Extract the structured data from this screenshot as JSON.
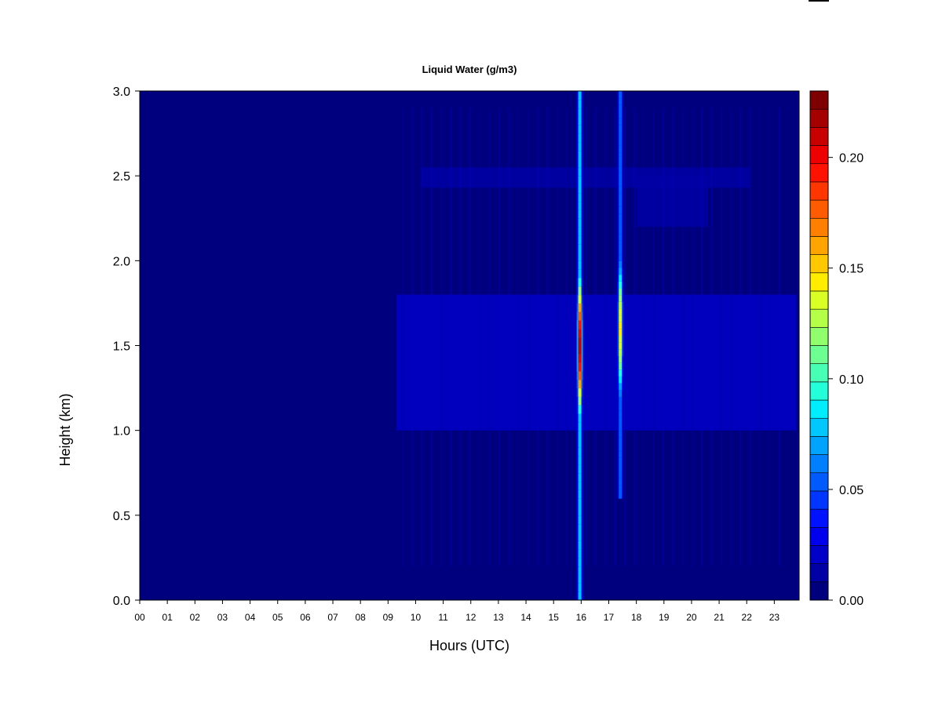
{
  "chart_data": {
    "type": "heatmap",
    "title": "Liquid Water (g/m3)",
    "xlabel": "Hours (UTC)",
    "ylabel": "Height (km)",
    "xlim": [
      0,
      23.9
    ],
    "ylim": [
      0,
      3.0
    ],
    "x_ticks": [
      0,
      1,
      2,
      3,
      4,
      5,
      6,
      7,
      8,
      9,
      10,
      11,
      12,
      13,
      14,
      15,
      16,
      17,
      18,
      19,
      20,
      21,
      22,
      23
    ],
    "x_tick_labels": [
      "00",
      "01",
      "02",
      "03",
      "04",
      "05",
      "06",
      "07",
      "08",
      "09",
      "10",
      "11",
      "12",
      "13",
      "14",
      "15",
      "16",
      "17",
      "18",
      "19",
      "20",
      "21",
      "22",
      "23"
    ],
    "y_ticks": [
      0.0,
      0.5,
      1.0,
      1.5,
      2.0,
      2.5,
      3.0
    ],
    "y_tick_labels": [
      "0.0",
      "0.5",
      "1.0",
      "1.5",
      "2.0",
      "2.5",
      "3.0"
    ],
    "colorbar": {
      "range": [
        0,
        0.23
      ],
      "levels": 23,
      "ticks": [
        0.0,
        0.05,
        0.1,
        0.15,
        0.2
      ],
      "tick_labels": [
        "0.00",
        "0.05",
        "0.10",
        "0.15",
        "0.20"
      ],
      "colors": [
        "#00007F",
        "#0000A4",
        "#0000C8",
        "#0000ED",
        "#0012FF",
        "#0036FF",
        "#005BFF",
        "#007FFF",
        "#00A4FF",
        "#00C8FF",
        "#00EDFF",
        "#24FFDA",
        "#48FFB6",
        "#6DFF91",
        "#91FF6D",
        "#B6FF48",
        "#DAFF24",
        "#FFED00",
        "#FFC800",
        "#FFA400",
        "#FF7F00",
        "#FF5B00",
        "#FF3600",
        "#FF1200",
        "#ED0000",
        "#C80000",
        "#A40000",
        "#7F0000"
      ]
    },
    "background_value": 0.002,
    "cloud_layers": [
      {
        "name": "mid-layer",
        "x_range": [
          9.3,
          23.8
        ],
        "y_range": [
          1.0,
          1.8
        ],
        "value": 0.018
      },
      {
        "name": "upper-layer",
        "x_range": [
          10.2,
          22.1
        ],
        "y_range": [
          2.43,
          2.55
        ],
        "value": 0.014
      },
      {
        "name": "upper-layer-ext",
        "x_range": [
          18.0,
          20.6
        ],
        "y_range": [
          2.2,
          2.5
        ],
        "value": 0.012
      }
    ],
    "columns": [
      {
        "x": 15.95,
        "value_peak": 0.21,
        "peak_height": 1.5,
        "y_range": [
          0.0,
          3.0
        ]
      },
      {
        "x": 17.42,
        "value_peak": 0.14,
        "peak_height": 1.6,
        "y_range": [
          0.6,
          3.0
        ]
      }
    ]
  }
}
